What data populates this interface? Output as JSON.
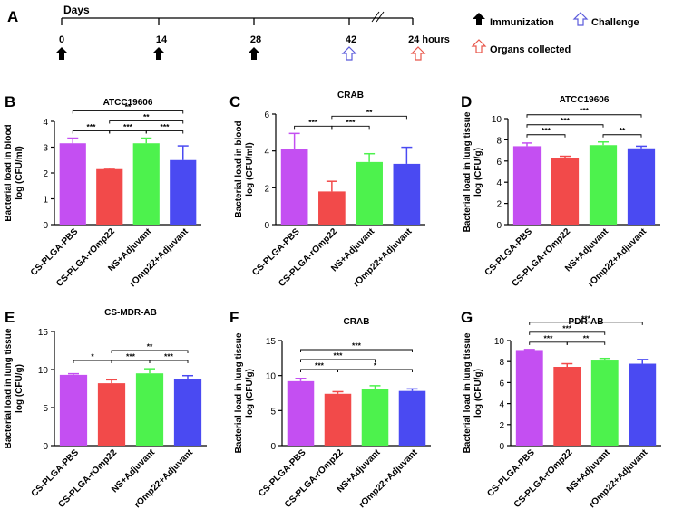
{
  "timeline": {
    "panel_label": "A",
    "days_label": "Days",
    "ticks": [
      "0",
      "14",
      "28",
      "42",
      "24 hours"
    ],
    "legend": {
      "immunization": "Immunization",
      "challenge": "Challenge",
      "organs": "Organs collected"
    },
    "colors": {
      "immunization": "#000000",
      "challenge": "#5b5bdb",
      "organs": "#e8564a"
    }
  },
  "chart_data": [
    {
      "panel": "B",
      "type": "bar",
      "title": "ATCC19606",
      "ylabel": [
        "Bacterial load in blood",
        "log (CFU/ml)"
      ],
      "ylim": [
        0,
        4
      ],
      "yticks": [
        0,
        1,
        2,
        3,
        4
      ],
      "categories": [
        "CS-PLGA-PBS",
        "CS-PLGA-rOmp22",
        "NS+Adjuvant",
        "rOmp22+Adjuvant"
      ],
      "values": [
        3.15,
        2.15,
        3.15,
        2.5
      ],
      "errors": [
        0.2,
        0.03,
        0.2,
        0.55
      ],
      "colors": [
        "#c44ff2",
        "#f24a4a",
        "#4df24d",
        "#4a4af2"
      ],
      "significance": [
        {
          "from": 0,
          "to": 1,
          "label": "***"
        },
        {
          "from": 1,
          "to": 2,
          "label": "***"
        },
        {
          "from": 2,
          "to": 3,
          "label": "***"
        },
        {
          "from": 1,
          "to": 3,
          "label": "**"
        },
        {
          "from": 0,
          "to": 3,
          "label": "**"
        }
      ]
    },
    {
      "panel": "C",
      "type": "bar",
      "title": "CRAB",
      "ylabel": [
        "Bacterial load in blood",
        "log (CFU/ml)"
      ],
      "ylim": [
        0,
        6
      ],
      "yticks": [
        0,
        2,
        4,
        6
      ],
      "categories": [
        "CS-PLGA-PBS",
        "CS-PLGA-rOmp22",
        "NS+Adjuvant",
        "rOmp22+Adjuvant"
      ],
      "values": [
        4.1,
        1.8,
        3.4,
        3.3
      ],
      "errors": [
        0.85,
        0.55,
        0.45,
        0.9
      ],
      "colors": [
        "#c44ff2",
        "#f24a4a",
        "#4df24d",
        "#4a4af2"
      ],
      "significance": [
        {
          "from": 0,
          "to": 1,
          "label": "***"
        },
        {
          "from": 1,
          "to": 2,
          "label": "***"
        },
        {
          "from": 1,
          "to": 3,
          "label": "**"
        }
      ]
    },
    {
      "panel": "D",
      "type": "bar",
      "title": "ATCC19606",
      "ylabel": [
        "Bacterial load in lung tissue",
        "log (CFU/g)"
      ],
      "ylim": [
        0,
        10
      ],
      "yticks": [
        0,
        2,
        4,
        6,
        8,
        10
      ],
      "categories": [
        "CS-PLGA-PBS",
        "CS-PLGA-rOmp22",
        "NS+Adjuvant",
        "rOmp22+Adjuvant"
      ],
      "values": [
        7.4,
        6.3,
        7.5,
        7.2
      ],
      "errors": [
        0.3,
        0.15,
        0.3,
        0.2
      ],
      "colors": [
        "#c44ff2",
        "#f24a4a",
        "#4df24d",
        "#4a4af2"
      ],
      "significance": [
        {
          "from": 0,
          "to": 1,
          "label": "***"
        },
        {
          "from": 2,
          "to": 3,
          "label": "**"
        },
        {
          "from": 0,
          "to": 2,
          "label": "***"
        },
        {
          "from": 0,
          "to": 3,
          "label": "***"
        }
      ]
    },
    {
      "panel": "E",
      "type": "bar",
      "title": "CS-MDR-AB",
      "ylabel": [
        "Bacterial load in lung tissue",
        "log (CFU/g)"
      ],
      "ylim": [
        0,
        15
      ],
      "yticks": [
        0,
        5,
        10,
        15
      ],
      "categories": [
        "CS-PLGA-PBS",
        "CS-PLGA-rOmp22",
        "NS+Adjuvant",
        "rOmp22+Adjuvant"
      ],
      "values": [
        9.3,
        8.2,
        9.5,
        8.8
      ],
      "errors": [
        0.15,
        0.45,
        0.6,
        0.4
      ],
      "colors": [
        "#c44ff2",
        "#f24a4a",
        "#4df24d",
        "#4a4af2"
      ],
      "significance": [
        {
          "from": 0,
          "to": 1,
          "label": "*"
        },
        {
          "from": 1,
          "to": 2,
          "label": "***"
        },
        {
          "from": 2,
          "to": 3,
          "label": "***"
        },
        {
          "from": 1,
          "to": 3,
          "label": "**"
        }
      ]
    },
    {
      "panel": "F",
      "type": "bar",
      "title": "CRAB",
      "ylabel": [
        "Bacterial load in lung tissue",
        "log (CFU/g)"
      ],
      "ylim": [
        0,
        15
      ],
      "yticks": [
        0,
        5,
        10,
        15
      ],
      "categories": [
        "CS-PLGA-PBS",
        "CS-PLGA-rOmp22",
        "NS+Adjuvant",
        "rOmp22+Adjuvant"
      ],
      "values": [
        9.2,
        7.4,
        8.1,
        7.8
      ],
      "errors": [
        0.4,
        0.3,
        0.45,
        0.3
      ],
      "colors": [
        "#c44ff2",
        "#f24a4a",
        "#4df24d",
        "#4a4af2"
      ],
      "significance": [
        {
          "from": 0,
          "to": 1,
          "label": "***"
        },
        {
          "from": 1,
          "to": 3,
          "label": "*"
        },
        {
          "from": 0,
          "to": 2,
          "label": "***"
        },
        {
          "from": 0,
          "to": 3,
          "label": "***"
        }
      ]
    },
    {
      "panel": "G",
      "type": "bar",
      "title": "PDR-AB",
      "ylabel": [
        "Bacterial load in lung tissue",
        "log (CFU/g)"
      ],
      "ylim": [
        0,
        10
      ],
      "yticks": [
        0,
        2,
        4,
        6,
        8,
        10
      ],
      "categories": [
        "CS-PLGA-PBS",
        "CS-PLGA-rOmp22",
        "NS+Adjuvant",
        "rOmp22+Adjuvant"
      ],
      "values": [
        9.1,
        7.5,
        8.1,
        7.8
      ],
      "errors": [
        0.05,
        0.3,
        0.2,
        0.4
      ],
      "colors": [
        "#c44ff2",
        "#f24a4a",
        "#4df24d",
        "#4a4af2"
      ],
      "significance": [
        {
          "from": 0,
          "to": 1,
          "label": "***"
        },
        {
          "from": 1,
          "to": 2,
          "label": "**"
        },
        {
          "from": 0,
          "to": 2,
          "label": "***"
        },
        {
          "from": 0,
          "to": 3,
          "label": "***"
        }
      ]
    }
  ]
}
